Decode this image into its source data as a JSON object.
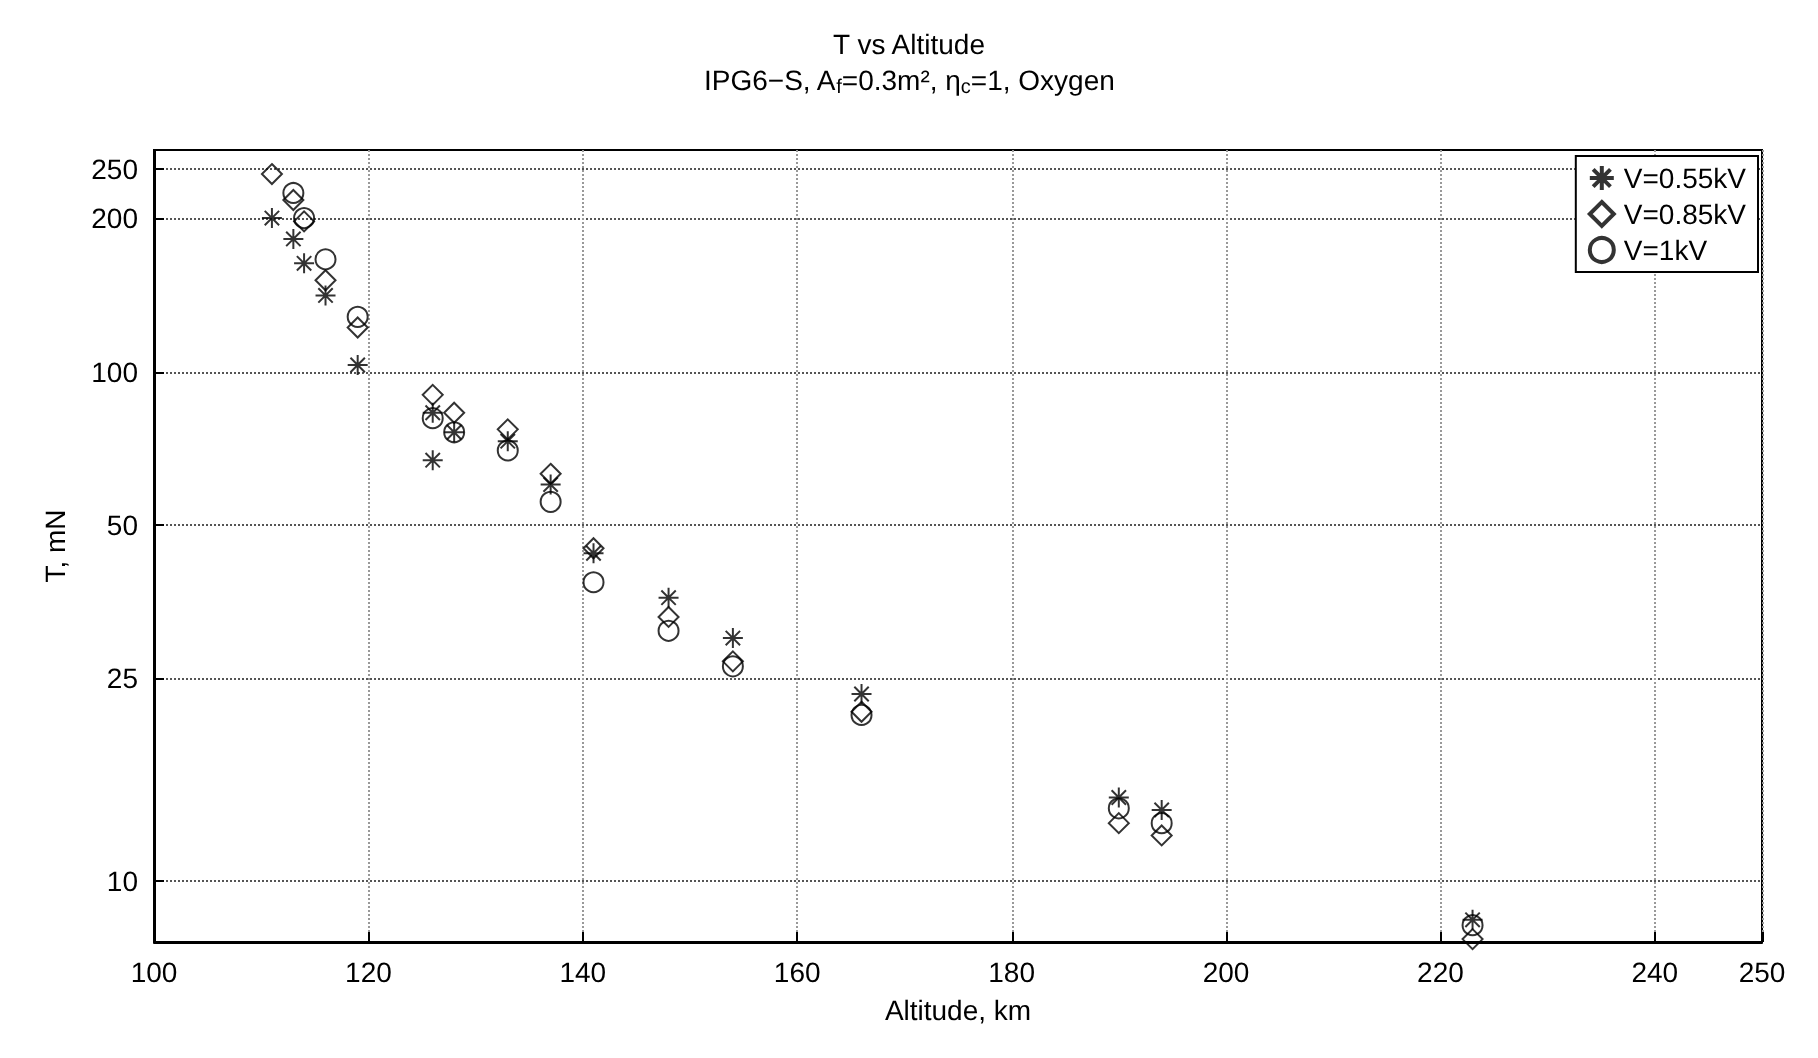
{
  "chart_data": {
    "type": "scatter",
    "title": "T vs Altitude",
    "subtitle": "IPG6−S, A$_{f}$=0.3m², η$_{c}$=1, Oxygen",
    "xlabel": "Altitude, km",
    "ylabel": "T, mN",
    "log": "y",
    "grid": true,
    "legend": "top right",
    "xlim": [
      100,
      250
    ],
    "xticks": [
      100,
      120,
      140,
      160,
      180,
      200,
      220,
      240,
      250
    ],
    "ylim": [
      7.6,
      272
    ],
    "yticks": [
      10,
      25,
      50,
      100,
      200,
      250
    ],
    "series": [
      {
        "name": "V=0.55kV",
        "color": "#000000",
        "marker": "cross",
        "x": [
          111,
          113,
          114,
          116,
          119,
          126,
          126,
          128,
          133,
          137,
          141,
          148,
          154,
          166,
          190,
          194,
          223
        ],
        "values": [
          200,
          182,
          163,
          141,
          103,
          83,
          67,
          76,
          73,
          60,
          44,
          36,
          30,
          23.3,
          14.6,
          13.8,
          8.4
        ]
      },
      {
        "name": "V=0.85kV",
        "color": "#000000",
        "marker": "diamond",
        "x": [
          111,
          113,
          114,
          116,
          119,
          126,
          128,
          133,
          137,
          141,
          148,
          154,
          166,
          190,
          194,
          223
        ],
        "values": [
          244,
          217,
          197,
          151,
          122,
          90,
          83,
          77,
          63,
          45,
          33,
          27,
          21.5,
          13,
          12.3,
          7.7
        ]
      },
      {
        "name": "V=1kV",
        "color": "#000000",
        "marker": "circle",
        "x": [
          113,
          114,
          116,
          119,
          126,
          128,
          133,
          137,
          141,
          148,
          154,
          166,
          190,
          194,
          223
        ],
        "values": [
          224,
          200,
          166,
          128,
          81,
          76,
          70,
          55.5,
          38.6,
          31,
          26.4,
          21.2,
          13.9,
          13,
          8.2
        ]
      }
    ]
  }
}
